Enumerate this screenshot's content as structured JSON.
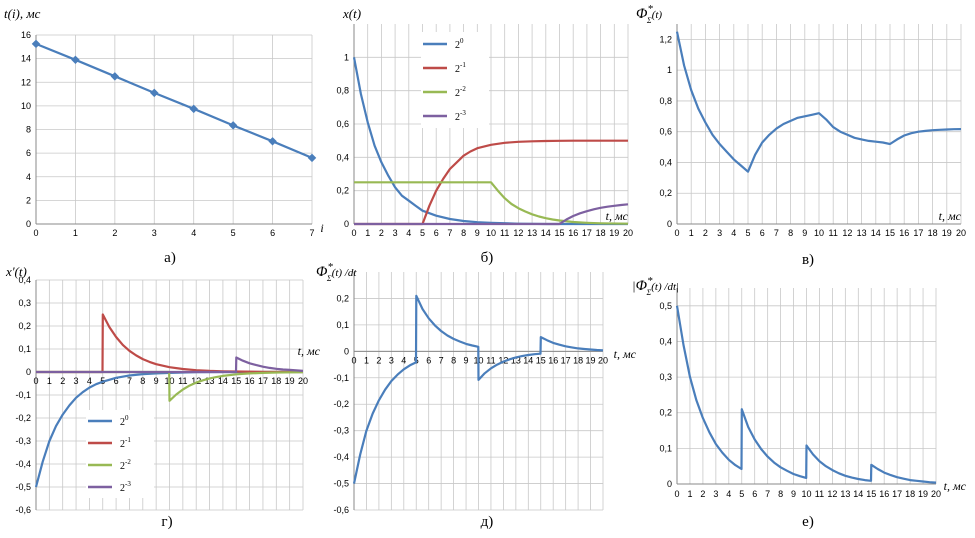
{
  "chart_data": [
    {
      "id": "a",
      "type": "line",
      "ylabel": "t(i), мс",
      "xlabel": "i",
      "caption": "а)",
      "xlim": [
        0,
        7
      ],
      "ylim": [
        0,
        16
      ],
      "xticks": [
        0,
        1,
        2,
        3,
        4,
        5,
        6,
        7
      ],
      "yticks": [
        0,
        2,
        4,
        6,
        8,
        10,
        12,
        14,
        16
      ],
      "ytick_labels": [
        "0",
        "2",
        "4",
        "6",
        "8",
        "10",
        "12",
        "14",
        "16"
      ],
      "series": [
        {
          "name": "t(i)",
          "color": "#4a7ebb",
          "markers": true,
          "x": [
            0,
            1,
            2,
            3,
            4,
            5,
            6,
            7
          ],
          "values": [
            15.25,
            13.9,
            12.5,
            11.1,
            9.75,
            8.35,
            7.0,
            5.6
          ]
        }
      ]
    },
    {
      "id": "b",
      "type": "line",
      "ylabel": "x(t)",
      "xlabel": "t, мс",
      "caption": "б)",
      "xlim": [
        0,
        20
      ],
      "ylim": [
        0,
        1.2
      ],
      "xticks": [
        0,
        1,
        2,
        3,
        4,
        5,
        6,
        7,
        8,
        9,
        10,
        11,
        12,
        13,
        14,
        15,
        16,
        17,
        18,
        19,
        20
      ],
      "yticks": [
        0,
        0.2,
        0.4,
        0.6,
        0.8,
        1.0
      ],
      "ytick_labels": [
        "0",
        "0,2",
        "0,4",
        "0,6",
        "0,8",
        "1"
      ],
      "legend": {
        "entries": [
          "2",
          "2",
          "2",
          "2"
        ],
        "exponents": [
          "0",
          "-1",
          "-2",
          "-3"
        ]
      },
      "series": [
        {
          "name": "2^0",
          "color": "#4a7ebb",
          "x": [
            0,
            0.5,
            1,
            1.5,
            2,
            2.5,
            3,
            3.5,
            4,
            4.5,
            5,
            6,
            7,
            8,
            9,
            10,
            12,
            14,
            16,
            18,
            20
          ],
          "values": [
            1,
            0.78,
            0.61,
            0.47,
            0.37,
            0.29,
            0.22,
            0.17,
            0.14,
            0.11,
            0.08,
            0.05,
            0.03,
            0.018,
            0.011,
            0.007,
            0.002,
            0,
            0,
            0,
            0
          ]
        },
        {
          "name": "2^-1",
          "color": "#be4b48",
          "x": [
            0,
            5,
            5.5,
            6,
            6.5,
            7,
            7.5,
            8,
            8.5,
            9,
            10,
            11,
            12,
            13,
            14,
            15,
            16,
            18,
            20
          ],
          "values": [
            0,
            0,
            0.11,
            0.2,
            0.27,
            0.33,
            0.37,
            0.41,
            0.435,
            0.455,
            0.475,
            0.487,
            0.493,
            0.496,
            0.498,
            0.499,
            0.5,
            0.5,
            0.5
          ]
        },
        {
          "name": "2^-2",
          "color": "#98b954",
          "x": [
            0,
            10,
            10.5,
            11,
            11.5,
            12,
            12.5,
            13,
            13.5,
            14,
            14.5,
            15,
            16,
            17,
            18,
            20
          ],
          "values": [
            0.25,
            0.25,
            0.2,
            0.155,
            0.12,
            0.095,
            0.075,
            0.058,
            0.045,
            0.035,
            0.027,
            0.021,
            0.012,
            0.007,
            0.004,
            0.002
          ]
        },
        {
          "name": "2^-3",
          "color": "#7d60a0",
          "x": [
            0,
            15,
            15.5,
            16,
            16.5,
            17,
            17.5,
            18,
            18.5,
            19,
            19.5,
            20
          ],
          "values": [
            0,
            0,
            0.027,
            0.048,
            0.064,
            0.077,
            0.088,
            0.097,
            0.104,
            0.109,
            0.114,
            0.118
          ]
        }
      ]
    },
    {
      "id": "v",
      "type": "line",
      "ylabel": "Φ*Σ(t)",
      "xlabel": "t, мс",
      "caption": "в)",
      "xlim": [
        0,
        20
      ],
      "ylim": [
        0,
        1.3
      ],
      "xticks": [
        0,
        1,
        2,
        3,
        4,
        5,
        6,
        7,
        8,
        9,
        10,
        11,
        12,
        13,
        14,
        15,
        16,
        17,
        18,
        19,
        20
      ],
      "yticks": [
        0,
        0.2,
        0.4,
        0.6,
        0.8,
        1.0,
        1.2
      ],
      "ytick_labels": [
        "0",
        "0,2",
        "0,4",
        "0,6",
        "0,8",
        "1",
        "1,2"
      ],
      "series": [
        {
          "name": "Φ*Σ",
          "color": "#4a7ebb",
          "x": [
            0,
            0.5,
            1,
            1.5,
            2,
            2.5,
            3,
            3.5,
            4,
            4.5,
            5,
            5.5,
            6,
            6.5,
            7,
            7.5,
            8,
            8.5,
            9,
            9.5,
            10,
            10.5,
            11,
            11.5,
            12,
            12.5,
            13,
            13.5,
            14,
            14.5,
            15,
            15.5,
            16,
            16.5,
            17,
            17.5,
            18,
            18.5,
            19,
            19.5,
            20
          ],
          "values": [
            1.25,
            1.03,
            0.87,
            0.75,
            0.66,
            0.58,
            0.52,
            0.47,
            0.42,
            0.38,
            0.34,
            0.45,
            0.53,
            0.58,
            0.62,
            0.65,
            0.67,
            0.69,
            0.7,
            0.71,
            0.72,
            0.68,
            0.63,
            0.6,
            0.58,
            0.56,
            0.55,
            0.54,
            0.535,
            0.53,
            0.52,
            0.55,
            0.575,
            0.59,
            0.6,
            0.605,
            0.61,
            0.612,
            0.614,
            0.616,
            0.617
          ]
        }
      ]
    },
    {
      "id": "g",
      "type": "line",
      "ylabel": "x'(t)",
      "xlabel": "t, мс",
      "caption": "г)",
      "xlim": [
        0,
        20
      ],
      "ylim": [
        -0.6,
        0.4
      ],
      "xticks": [
        0,
        1,
        2,
        3,
        4,
        5,
        6,
        7,
        8,
        9,
        10,
        11,
        12,
        13,
        14,
        15,
        16,
        17,
        18,
        19,
        20
      ],
      "yticks": [
        -0.6,
        -0.5,
        -0.4,
        -0.3,
        -0.2,
        -0.1,
        0,
        0.1,
        0.2,
        0.3,
        0.4
      ],
      "ytick_labels": [
        "-0,6",
        "-0,5",
        "-0,4",
        "-0,3",
        "-0,2",
        "-0,1",
        "0",
        "0,1",
        "0,2",
        "0,3",
        "0,4"
      ],
      "legend": {
        "entries": [
          "2",
          "2",
          "2",
          "2"
        ],
        "exponents": [
          "0",
          "-1",
          "-2",
          "-3"
        ]
      },
      "series": [
        {
          "name": "2^0",
          "color": "#4a7ebb",
          "x": [
            0,
            0.5,
            1,
            1.5,
            2,
            2.5,
            3,
            3.5,
            4,
            4.5,
            5,
            6,
            7,
            8,
            9,
            10,
            12,
            14,
            16,
            18,
            20
          ],
          "values": [
            -0.5,
            -0.39,
            -0.3,
            -0.235,
            -0.185,
            -0.145,
            -0.112,
            -0.088,
            -0.068,
            -0.053,
            -0.042,
            -0.025,
            -0.015,
            -0.009,
            -0.006,
            -0.004,
            -0.001,
            0,
            0,
            0,
            0
          ]
        },
        {
          "name": "2^-1",
          "color": "#be4b48",
          "x": [
            0,
            4.98,
            5,
            5.5,
            6,
            6.5,
            7,
            7.5,
            8,
            8.5,
            9,
            10,
            11,
            12,
            13,
            14,
            15,
            17,
            20
          ],
          "values": [
            0,
            0,
            0.25,
            0.195,
            0.152,
            0.118,
            0.092,
            0.072,
            0.056,
            0.044,
            0.034,
            0.021,
            0.013,
            0.008,
            0.005,
            0.003,
            0.002,
            0.001,
            0
          ]
        },
        {
          "name": "2^-2",
          "color": "#98b954",
          "x": [
            0,
            9.98,
            10,
            10.5,
            11,
            11.5,
            12,
            12.5,
            13,
            13.5,
            14,
            15,
            16,
            17,
            18,
            20
          ],
          "values": [
            0,
            0,
            -0.125,
            -0.098,
            -0.076,
            -0.059,
            -0.046,
            -0.036,
            -0.028,
            -0.022,
            -0.017,
            -0.01,
            -0.006,
            -0.004,
            -0.002,
            -0.001
          ]
        },
        {
          "name": "2^-3",
          "color": "#7d60a0",
          "x": [
            0,
            14.98,
            15,
            15.5,
            16,
            16.5,
            17,
            17.5,
            18,
            18.5,
            19,
            19.5,
            20
          ],
          "values": [
            0,
            0,
            0.063,
            0.049,
            0.038,
            0.03,
            0.023,
            0.018,
            0.014,
            0.011,
            0.009,
            0.007,
            0.005
          ]
        }
      ]
    },
    {
      "id": "d",
      "type": "line",
      "ylabel": "Φ*Σ(t) /dt",
      "xlabel": "t, мс",
      "caption": "д)",
      "xlim": [
        0,
        20
      ],
      "ylim": [
        -0.6,
        0.3
      ],
      "xticks": [
        0,
        1,
        2,
        3,
        4,
        5,
        6,
        7,
        8,
        9,
        10,
        11,
        12,
        13,
        14,
        15,
        16,
        17,
        18,
        19,
        20
      ],
      "yticks": [
        -0.6,
        -0.5,
        -0.4,
        -0.3,
        -0.2,
        -0.1,
        0,
        0.1,
        0.2
      ],
      "ytick_labels": [
        "-0,6",
        "-0,5",
        "-0,4",
        "-0,3",
        "-0,2",
        "-0,1",
        "0",
        "0,1",
        "0,2"
      ],
      "series": [
        {
          "name": "dΦ*Σ/dt",
          "color": "#4a7ebb",
          "x": [
            0,
            0.5,
            1,
            1.5,
            2,
            2.5,
            3,
            3.5,
            4,
            4.5,
            4.98,
            5,
            5.5,
            6,
            6.5,
            7,
            7.5,
            8,
            8.5,
            9,
            9.5,
            9.98,
            10,
            10.5,
            11,
            11.5,
            12,
            12.5,
            13,
            13.5,
            14,
            14.5,
            14.98,
            15,
            15.5,
            16,
            16.5,
            17,
            17.5,
            18,
            18.5,
            19,
            19.5,
            20
          ],
          "values": [
            -0.5,
            -0.39,
            -0.3,
            -0.235,
            -0.185,
            -0.145,
            -0.112,
            -0.088,
            -0.068,
            -0.053,
            -0.042,
            0.21,
            0.16,
            0.125,
            0.098,
            0.077,
            0.06,
            0.047,
            0.037,
            0.028,
            0.022,
            0.017,
            -0.108,
            -0.083,
            -0.064,
            -0.05,
            -0.039,
            -0.03,
            -0.023,
            -0.018,
            -0.014,
            -0.011,
            -0.009,
            0.054,
            0.042,
            0.032,
            0.025,
            0.019,
            0.015,
            0.011,
            0.009,
            0.007,
            0.005,
            0.004
          ]
        }
      ]
    },
    {
      "id": "e",
      "type": "line",
      "ylabel": "|Φ*Σ(t) /dt|",
      "xlabel": "t, мс",
      "caption": "е)",
      "xlim": [
        0,
        20
      ],
      "ylim": [
        0,
        0.55
      ],
      "xticks": [
        0,
        1,
        2,
        3,
        4,
        5,
        6,
        7,
        8,
        9,
        10,
        11,
        12,
        13,
        14,
        15,
        16,
        17,
        18,
        19,
        20
      ],
      "yticks": [
        0,
        0.1,
        0.2,
        0.3,
        0.4,
        0.5
      ],
      "ytick_labels": [
        "0",
        "0,1",
        "0,2",
        "0,3",
        "0,4",
        "0,5"
      ],
      "series": [
        {
          "name": "|dΦ*Σ/dt|",
          "color": "#4a7ebb",
          "x": [
            0,
            0.5,
            1,
            1.5,
            2,
            2.5,
            3,
            3.5,
            4,
            4.5,
            4.98,
            5,
            5.5,
            6,
            6.5,
            7,
            7.5,
            8,
            8.5,
            9,
            9.5,
            9.98,
            10,
            10.5,
            11,
            11.5,
            12,
            12.5,
            13,
            13.5,
            14,
            14.5,
            14.98,
            15,
            15.5,
            16,
            16.5,
            17,
            17.5,
            18,
            18.5,
            19,
            19.5,
            20
          ],
          "values": [
            0.5,
            0.39,
            0.3,
            0.235,
            0.185,
            0.145,
            0.112,
            0.088,
            0.068,
            0.053,
            0.042,
            0.21,
            0.16,
            0.125,
            0.098,
            0.077,
            0.06,
            0.047,
            0.037,
            0.028,
            0.022,
            0.017,
            0.108,
            0.083,
            0.064,
            0.05,
            0.039,
            0.03,
            0.023,
            0.018,
            0.014,
            0.011,
            0.009,
            0.054,
            0.042,
            0.032,
            0.025,
            0.019,
            0.015,
            0.011,
            0.009,
            0.007,
            0.005,
            0.004
          ]
        }
      ]
    }
  ]
}
